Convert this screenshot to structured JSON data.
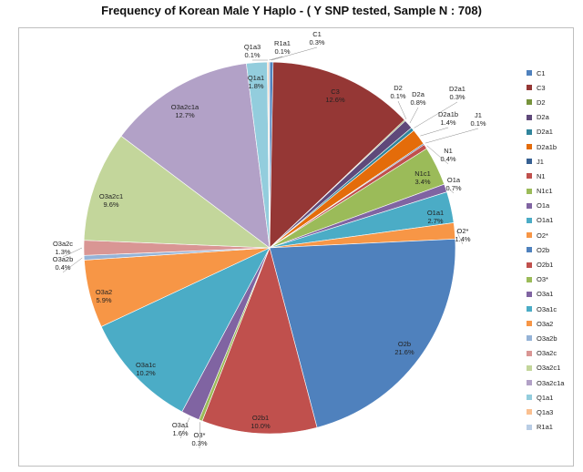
{
  "chart_data": {
    "type": "pie",
    "title": "Frequency of Korean Male Y Haplo  - ( Y SNP tested,  Sample N  : 708)",
    "legend_position": "right",
    "slices": [
      {
        "label": "C1",
        "pct": "0.3%",
        "value": 0.3,
        "color": "#4f81bd"
      },
      {
        "label": "C3",
        "pct": "12.6%",
        "value": 12.6,
        "color": "#953735"
      },
      {
        "label": "D2",
        "pct": "0.1%",
        "value": 0.1,
        "color": "#77933c"
      },
      {
        "label": "D2a",
        "pct": "0.8%",
        "value": 0.8,
        "color": "#5f497a"
      },
      {
        "label": "D2a1",
        "pct": "0.3%",
        "value": 0.3,
        "color": "#31859c"
      },
      {
        "label": "D2a1b",
        "pct": "1.4%",
        "value": 1.4,
        "color": "#e46c0a"
      },
      {
        "label": "J1",
        "pct": "0.1%",
        "value": 0.1,
        "color": "#376092"
      },
      {
        "label": "N1",
        "pct": "0.4%",
        "value": 0.4,
        "color": "#c0504d"
      },
      {
        "label": "N1c1",
        "pct": "3.4%",
        "value": 3.4,
        "color": "#9bbb59"
      },
      {
        "label": "O1a",
        "pct": "0.7%",
        "value": 0.7,
        "color": "#8064a2"
      },
      {
        "label": "O1a1",
        "pct": "2.7%",
        "value": 2.7,
        "color": "#4bacc6"
      },
      {
        "label": "O2*",
        "pct": "1.4%",
        "value": 1.4,
        "color": "#f79646"
      },
      {
        "label": "O2b",
        "pct": "21.6%",
        "value": 21.6,
        "color": "#4f81bd"
      },
      {
        "label": "O2b1",
        "pct": "10.0%",
        "value": 10.0,
        "color": "#c0504d"
      },
      {
        "label": "O3*",
        "pct": "0.3%",
        "value": 0.3,
        "color": "#9bbb59"
      },
      {
        "label": "O3a1",
        "pct": "1.6%",
        "value": 1.6,
        "color": "#8064a2"
      },
      {
        "label": "O3a1c",
        "pct": "10.2%",
        "value": 10.2,
        "color": "#4bacc6"
      },
      {
        "label": "O3a2",
        "pct": "5.9%",
        "value": 5.9,
        "color": "#f79646"
      },
      {
        "label": "O3a2b",
        "pct": "0.4%",
        "value": 0.4,
        "color": "#95b3d7"
      },
      {
        "label": "O3a2c",
        "pct": "1.3%",
        "value": 1.3,
        "color": "#d99694"
      },
      {
        "label": "O3a2c1",
        "pct": "9.6%",
        "value": 9.6,
        "color": "#c3d69b"
      },
      {
        "label": "O3a2c1a",
        "pct": "12.7%",
        "value": 12.7,
        "color": "#b2a1c7"
      },
      {
        "label": "Q1a1",
        "pct": "1.8%",
        "value": 1.8,
        "color": "#93cddd"
      },
      {
        "label": "Q1a3",
        "pct": "0.1%",
        "value": 0.1,
        "color": "#fac090"
      },
      {
        "label": "R1a1",
        "pct": "0.1%",
        "value": 0.1,
        "color": "#b9cde5"
      }
    ]
  }
}
